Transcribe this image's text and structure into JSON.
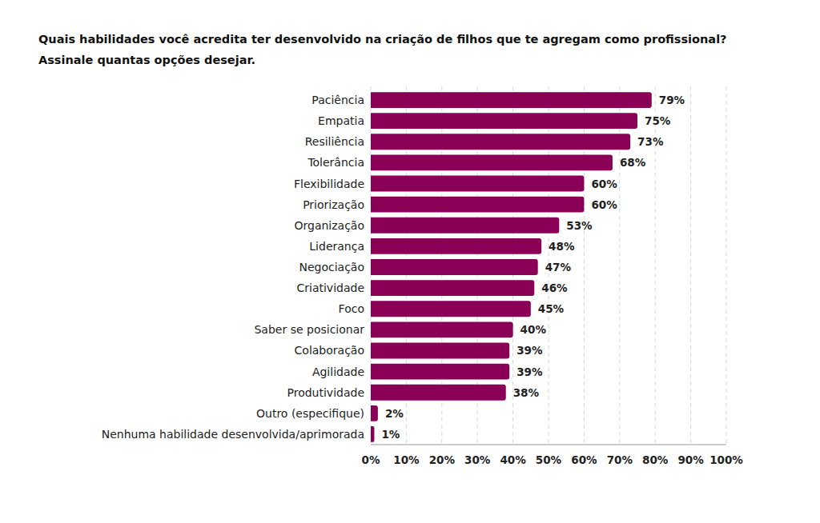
{
  "chart_data": {
    "type": "bar",
    "orientation": "horizontal",
    "title": "Quais habilidades você acredita ter desenvolvido na criação de filhos que te agregam como profissional?",
    "subtitle": "Assinale quantas opções desejar.",
    "categories": [
      "Paciência",
      "Empatia",
      "Resiliência",
      "Tolerância",
      "Flexibilidade",
      "Priorização",
      "Organização",
      "Liderança",
      "Negociação",
      "Criatividade",
      "Foco",
      "Saber se posicionar",
      "Colaboração",
      "Agilidade",
      "Produtividade",
      "Outro (especifique)",
      "Nenhuma habilidade desenvolvida/aprimorada"
    ],
    "values": [
      79,
      75,
      73,
      68,
      60,
      60,
      53,
      48,
      47,
      46,
      45,
      40,
      39,
      39,
      38,
      2,
      1
    ],
    "value_labels": [
      "79%",
      "75%",
      "73%",
      "68%",
      "60%",
      "60%",
      "53%",
      "48%",
      "47%",
      "46%",
      "45%",
      "40%",
      "39%",
      "39%",
      "38%",
      "2%",
      "1%"
    ],
    "data_labels": true,
    "color": "#8a0057",
    "xlim": [
      0,
      100
    ],
    "xticks": [
      {
        "value": 0,
        "label": "0%"
      },
      {
        "value": 10,
        "label": "10%"
      },
      {
        "value": 20,
        "label": "20%"
      },
      {
        "value": 30,
        "label": "30%"
      },
      {
        "value": 40,
        "label": "40%"
      },
      {
        "value": 50,
        "label": "50%"
      },
      {
        "value": 60,
        "label": "60%"
      },
      {
        "value": 70,
        "label": "70%"
      },
      {
        "value": 80,
        "label": "80%"
      },
      {
        "value": 90,
        "label": "90%"
      },
      {
        "value": 100,
        "label": "100%"
      }
    ],
    "grid": true
  }
}
